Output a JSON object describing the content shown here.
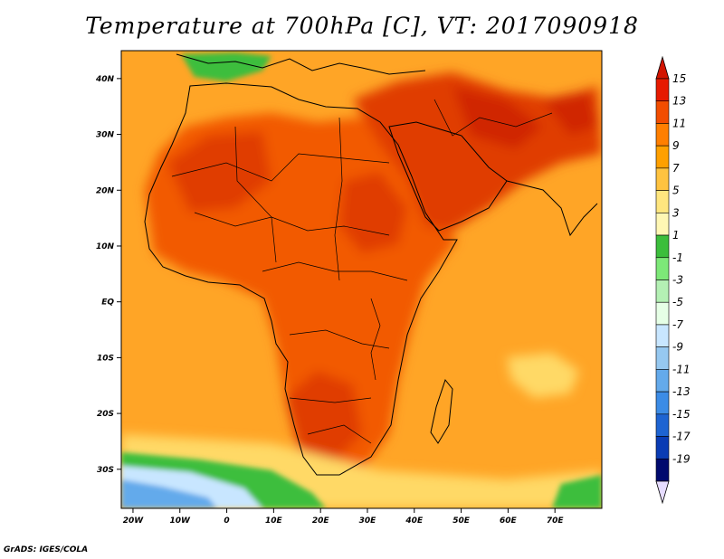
{
  "title": "Temperature at 700hPa [C], VT: 2017090918",
  "footer": "GrADS: IGES/COLA",
  "map": {
    "lon_range": [
      -22.5,
      80
    ],
    "lat_range": [
      -37,
      45
    ],
    "x_ticks": [
      {
        "lon": -20,
        "label": "20W"
      },
      {
        "lon": -10,
        "label": "10W"
      },
      {
        "lon": 0,
        "label": "0"
      },
      {
        "lon": 10,
        "label": "10E"
      },
      {
        "lon": 20,
        "label": "20E"
      },
      {
        "lon": 30,
        "label": "30E"
      },
      {
        "lon": 40,
        "label": "40E"
      },
      {
        "lon": 50,
        "label": "50E"
      },
      {
        "lon": 60,
        "label": "60E"
      },
      {
        "lon": 70,
        "label": "70E"
      }
    ],
    "y_ticks": [
      {
        "lat": 40,
        "label": "40N"
      },
      {
        "lat": 30,
        "label": "30N"
      },
      {
        "lat": 20,
        "label": "20N"
      },
      {
        "lat": 10,
        "label": "10N"
      },
      {
        "lat": 0,
        "label": "EQ"
      },
      {
        "lat": -10,
        "label": "10S"
      },
      {
        "lat": -20,
        "label": "20S"
      },
      {
        "lat": -30,
        "label": "30S"
      }
    ]
  },
  "colorbar": {
    "labels": [
      "15",
      "13",
      "11",
      "9",
      "7",
      "5",
      "3",
      "1",
      "-1",
      "-3",
      "-5",
      "-7",
      "-9",
      "-11",
      "-13",
      "-15",
      "-17",
      "-19"
    ],
    "colors": [
      "#e61a00",
      "#f24d00",
      "#ff7f00",
      "#ffa000",
      "#ffc340",
      "#ffe67f",
      "#fff7b4",
      "#3cbe3c",
      "#7de878",
      "#b4f0b4",
      "#e6ffe6",
      "#c8e6ff",
      "#96c8f0",
      "#64aaeb",
      "#3c8ce6",
      "#1e64d2",
      "#0a3cb4",
      "#000a6e"
    ],
    "top_arrow_color": "#d21400",
    "bottom_arrow_color": "#e6dcff"
  },
  "colors": {
    "ocean_base": "#ffa526",
    "land_hot": "#f25a00",
    "land_very_hot": "#e03c00",
    "peak": "#d02800",
    "cool_sea": "#ffd966",
    "cold_green": "#3cbe3c",
    "cold_light": "#c8e6ff",
    "cold_blue": "#64aaeb"
  }
}
